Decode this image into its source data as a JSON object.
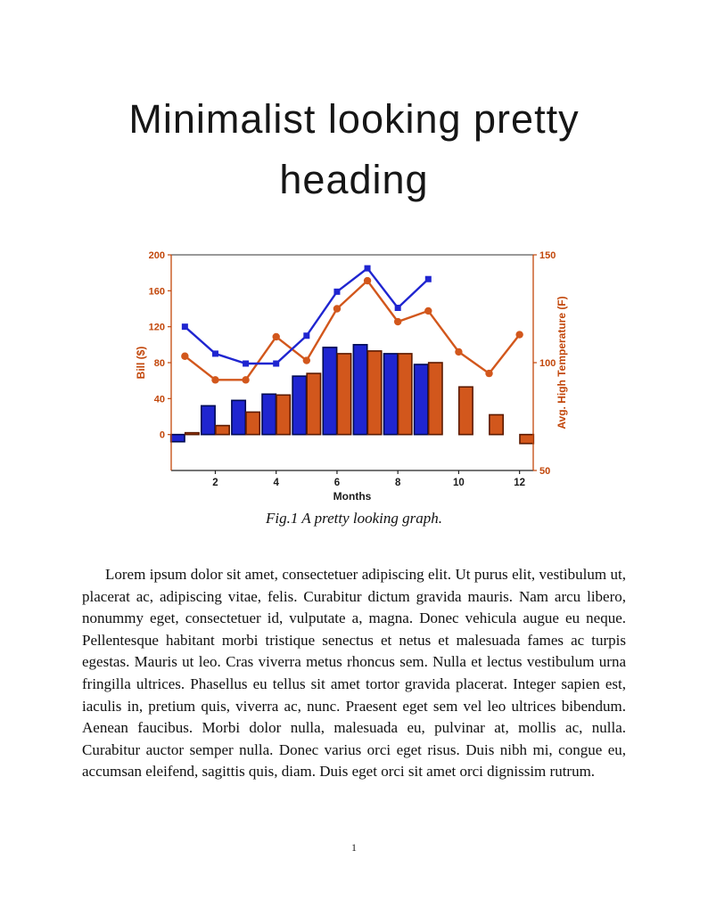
{
  "page": {
    "heading_line1": "Minimalist looking pretty",
    "heading_line2": "heading",
    "caption": "Fig.1 A pretty looking graph.",
    "body_paragraph": "Lorem ipsum dolor sit amet, consectetuer adipiscing elit. Ut purus elit, vestibulum ut, placerat ac, adipiscing vitae, felis. Curabitur dictum gravida mauris. Nam arcu libero, nonummy eget, consectetuer id, vulputate a, magna. Donec vehicula augue eu neque. Pellentesque habitant morbi tristique senectus et netus et malesuada fames ac turpis egestas. Mauris ut leo. Cras viverra metus rhoncus sem. Nulla et lectus vestibulum urna fringilla ultrices. Phasellus eu tellus sit amet tortor gravida placerat. Integer sapien est, iaculis in, pretium quis, viverra ac, nunc. Praesent eget sem vel leo ultrices bibendum. Aenean faucibus. Morbi dolor nulla, malesuada eu, pulvinar at, mollis ac, nulla. Curabitur auctor semper nulla. Donec varius orci eget risus. Duis nibh mi, congue eu, accumsan eleifend, sagittis quis, diam. Duis eget orci sit amet orci dignissim rutrum.",
    "page_number": "1"
  },
  "chart_data": {
    "type": "bar",
    "subtype": "grouped-bars-with-two-lines-dual-axis",
    "title": "",
    "xlabel": "Months",
    "x": [
      1,
      2,
      3,
      4,
      5,
      6,
      7,
      8,
      9,
      10,
      11,
      12
    ],
    "x_ticks": [
      2,
      4,
      6,
      8,
      10,
      12
    ],
    "xlim": [
      0.55,
      12.45
    ],
    "grid": "off",
    "legend": "none",
    "left_axis": {
      "label": "Bill ($)",
      "ticks": [
        0,
        40,
        80,
        120,
        160,
        200
      ],
      "lim": [
        -40,
        200
      ],
      "color": "#c2470b"
    },
    "right_axis": {
      "label": "Avg. High Temperature (F)",
      "ticks": [
        50,
        100,
        150
      ],
      "lim": [
        50,
        150
      ],
      "color": "#c2470b"
    },
    "series": [
      {
        "name": "bill-bars",
        "type": "bar",
        "axis": "left",
        "color": "#1f25d0",
        "edge": "#000a52",
        "values": [
          -8,
          32,
          38,
          45,
          65,
          97,
          100,
          90,
          78
        ]
      },
      {
        "name": "usage-bars",
        "type": "bar",
        "axis": "left",
        "color": "#d2571c",
        "edge": "#5c1a00",
        "values": [
          2,
          10,
          25,
          44,
          68,
          90,
          93,
          90,
          80,
          53,
          22,
          -10
        ]
      },
      {
        "name": "temp-line",
        "type": "line",
        "axis": "right",
        "color": "#d2571c",
        "marker": "circle",
        "values": [
          103,
          92,
          92,
          112,
          101,
          125,
          138,
          119,
          124,
          105,
          95,
          113
        ]
      },
      {
        "name": "bill-line",
        "type": "line",
        "axis": "left",
        "color": "#1f25d0",
        "marker": "square",
        "values": [
          120,
          90,
          79,
          79,
          110,
          159,
          185,
          141,
          173
        ]
      }
    ]
  }
}
